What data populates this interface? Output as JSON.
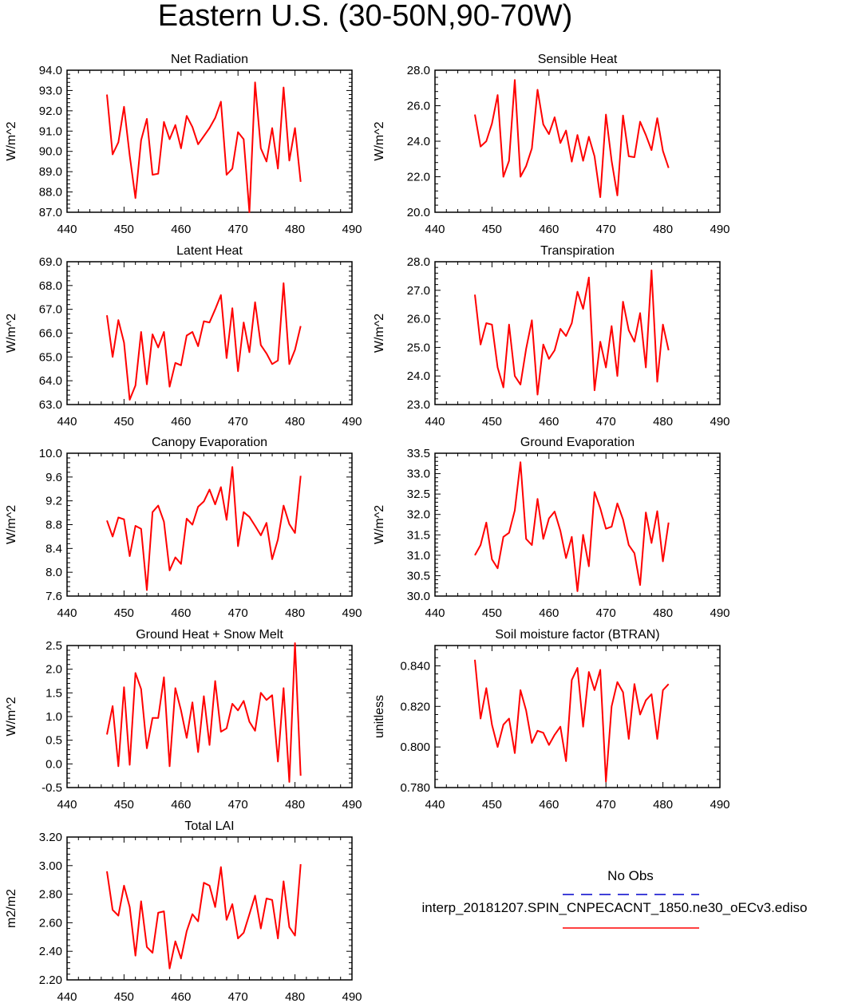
{
  "title": "Eastern U.S. (30-50N,90-70W)",
  "x": [
    447,
    448,
    449,
    450,
    451,
    452,
    453,
    454,
    455,
    456,
    457,
    458,
    459,
    460,
    461,
    462,
    463,
    464,
    465,
    466,
    467,
    468,
    469,
    470,
    471,
    472,
    473,
    474,
    475,
    476,
    477,
    478,
    479,
    480,
    481
  ],
  "line_color": "#ff0000",
  "obs_color": "#0000cc",
  "legend": {
    "obs_label": "No Obs",
    "model_label": "interp_20181207.SPIN_CNPECACNT_1850.ne30_oECv3.ediso"
  },
  "chart_data": [
    {
      "type": "line",
      "title": "Net Radiation",
      "ylabel": "W/m^2",
      "xlim": [
        440,
        490
      ],
      "xticks": [
        "440",
        "450",
        "460",
        "470",
        "480",
        "490"
      ],
      "ylim": [
        87.0,
        94.0
      ],
      "yticks": [
        "87.0",
        "88.0",
        "89.0",
        "90.0",
        "91.0",
        "92.0",
        "93.0",
        "94.0"
      ],
      "values": [
        92.8,
        89.85,
        90.45,
        92.2,
        89.8,
        87.7,
        90.55,
        91.6,
        88.85,
        88.9,
        91.45,
        90.6,
        91.3,
        90.15,
        91.75,
        91.2,
        90.35,
        90.75,
        91.15,
        91.65,
        92.45,
        88.85,
        89.15,
        90.95,
        90.6,
        87.0,
        93.4,
        90.15,
        89.5,
        91.15,
        89.15,
        93.15,
        89.55,
        91.15,
        88.5
      ]
    },
    {
      "type": "line",
      "title": "Sensible Heat",
      "ylabel": "W/m^2",
      "xlim": [
        440,
        490
      ],
      "xticks": [
        "440",
        "450",
        "460",
        "470",
        "480",
        "490"
      ],
      "ylim": [
        20.0,
        28.0
      ],
      "yticks": [
        "20.0",
        "22.0",
        "24.0",
        "26.0",
        "28.0"
      ],
      "values": [
        25.5,
        23.7,
        24.0,
        25.0,
        26.6,
        22.0,
        22.9,
        27.45,
        22.0,
        22.6,
        23.6,
        26.9,
        24.95,
        24.4,
        25.35,
        23.9,
        24.6,
        22.85,
        24.35,
        22.9,
        24.25,
        23.15,
        20.85,
        25.5,
        22.9,
        20.95,
        25.45,
        23.15,
        23.1,
        25.1,
        24.35,
        23.5,
        25.3,
        23.45,
        22.5
      ]
    },
    {
      "type": "line",
      "title": "Latent Heat",
      "ylabel": "W/m^2",
      "xlim": [
        440,
        490
      ],
      "xticks": [
        "440",
        "450",
        "460",
        "470",
        "480",
        "490"
      ],
      "ylim": [
        63.0,
        69.0
      ],
      "yticks": [
        "63.0",
        "64.0",
        "65.0",
        "66.0",
        "67.0",
        "68.0",
        "69.0"
      ],
      "values": [
        66.75,
        65.0,
        66.55,
        65.6,
        63.2,
        63.8,
        66.05,
        63.85,
        65.95,
        65.4,
        66.05,
        63.75,
        64.75,
        64.65,
        65.9,
        66.05,
        65.45,
        66.5,
        66.45,
        67.0,
        67.6,
        64.95,
        67.05,
        64.4,
        66.45,
        65.2,
        67.3,
        65.5,
        65.15,
        64.7,
        64.85,
        68.1,
        64.7,
        65.3,
        66.3
      ]
    },
    {
      "type": "line",
      "title": "Transpiration",
      "ylabel": "W/m^2",
      "xlim": [
        440,
        490
      ],
      "xticks": [
        "440",
        "450",
        "460",
        "470",
        "480",
        "490"
      ],
      "ylim": [
        23.0,
        28.0
      ],
      "yticks": [
        "23.0",
        "24.0",
        "25.0",
        "26.0",
        "27.0",
        "28.0"
      ],
      "values": [
        26.85,
        25.1,
        25.85,
        25.8,
        24.3,
        23.6,
        25.8,
        24.0,
        23.7,
        24.95,
        25.95,
        23.35,
        25.1,
        24.6,
        24.9,
        25.65,
        25.4,
        25.85,
        26.95,
        26.35,
        27.45,
        23.5,
        25.2,
        24.3,
        25.75,
        24.0,
        26.6,
        25.6,
        25.2,
        26.2,
        24.3,
        27.7,
        23.8,
        25.8,
        24.9
      ]
    },
    {
      "type": "line",
      "title": "Canopy Evaporation",
      "ylabel": "W/m^2",
      "xlim": [
        440,
        490
      ],
      "xticks": [
        "440",
        "450",
        "460",
        "470",
        "480",
        "490"
      ],
      "ylim": [
        7.6,
        10.0
      ],
      "yticks": [
        "7.6",
        "8.0",
        "8.4",
        "8.8",
        "9.2",
        "9.6",
        "10.0"
      ],
      "values": [
        8.87,
        8.6,
        8.92,
        8.89,
        8.27,
        8.78,
        8.73,
        7.7,
        9.01,
        9.12,
        8.85,
        8.03,
        8.25,
        8.14,
        8.9,
        8.8,
        9.1,
        9.19,
        9.39,
        9.14,
        9.43,
        8.88,
        9.77,
        8.44,
        9.01,
        8.93,
        8.78,
        8.62,
        8.83,
        8.22,
        8.55,
        9.12,
        8.81,
        8.66,
        9.62
      ]
    },
    {
      "type": "line",
      "title": "Ground Evaporation",
      "ylabel": "W/m^2",
      "xlim": [
        440,
        490
      ],
      "xticks": [
        "440",
        "450",
        "460",
        "470",
        "480",
        "490"
      ],
      "ylim": [
        30.0,
        33.5
      ],
      "yticks": [
        "30.0",
        "30.5",
        "31.0",
        "31.5",
        "32.0",
        "32.5",
        "33.0",
        "33.5"
      ],
      "values": [
        31.0,
        31.25,
        31.8,
        30.9,
        30.68,
        31.45,
        31.55,
        32.1,
        33.28,
        31.4,
        31.25,
        32.38,
        31.4,
        31.9,
        32.07,
        31.6,
        30.93,
        31.45,
        30.12,
        31.5,
        30.73,
        32.55,
        32.15,
        31.65,
        31.7,
        32.27,
        31.88,
        31.25,
        31.05,
        30.27,
        32.05,
        31.3,
        32.08,
        30.85,
        31.8
      ]
    },
    {
      "type": "line",
      "title": "Ground Heat + Snow Melt",
      "ylabel": "W/m^2",
      "xlim": [
        440,
        490
      ],
      "xticks": [
        "440",
        "450",
        "460",
        "470",
        "480",
        "490"
      ],
      "ylim": [
        -0.5,
        2.5
      ],
      "yticks": [
        "-0.5",
        "0.0",
        "0.5",
        "1.0",
        "1.5",
        "2.0",
        "2.5"
      ],
      "values": [
        0.62,
        1.22,
        -0.05,
        1.62,
        -0.02,
        1.92,
        1.58,
        0.33,
        0.97,
        0.97,
        1.83,
        -0.05,
        1.6,
        1.13,
        0.55,
        1.3,
        0.25,
        1.43,
        0.4,
        1.75,
        0.68,
        0.75,
        1.27,
        1.13,
        1.33,
        0.89,
        0.7,
        1.5,
        1.35,
        1.45,
        0.05,
        1.6,
        -0.38,
        2.55,
        -0.25
      ]
    },
    {
      "type": "line",
      "title": "Soil moisture factor (BTRAN)",
      "ylabel": "unitless",
      "xlim": [
        440,
        490
      ],
      "xticks": [
        "440",
        "450",
        "460",
        "470",
        "480",
        "490"
      ],
      "ylim": [
        0.78,
        0.85
      ],
      "yticks": [
        "0.780",
        "0.800",
        "0.820",
        "0.840"
      ],
      "values": [
        0.843,
        0.814,
        0.829,
        0.811,
        0.8,
        0.811,
        0.814,
        0.797,
        0.828,
        0.818,
        0.802,
        0.808,
        0.807,
        0.801,
        0.806,
        0.81,
        0.793,
        0.833,
        0.839,
        0.81,
        0.837,
        0.828,
        0.838,
        0.783,
        0.82,
        0.832,
        0.827,
        0.804,
        0.831,
        0.816,
        0.823,
        0.826,
        0.804,
        0.828,
        0.831
      ]
    },
    {
      "type": "line",
      "title": "Total LAI",
      "ylabel": "m2/m2",
      "xlim": [
        440,
        490
      ],
      "xticks": [
        "440",
        "450",
        "460",
        "470",
        "480",
        "490"
      ],
      "ylim": [
        2.2,
        3.2
      ],
      "yticks": [
        "2.20",
        "2.40",
        "2.60",
        "2.80",
        "3.00",
        "3.20"
      ],
      "values": [
        2.96,
        2.69,
        2.65,
        2.86,
        2.71,
        2.37,
        2.75,
        2.43,
        2.39,
        2.67,
        2.68,
        2.28,
        2.47,
        2.35,
        2.54,
        2.66,
        2.61,
        2.88,
        2.86,
        2.71,
        2.99,
        2.62,
        2.73,
        2.49,
        2.53,
        2.66,
        2.79,
        2.56,
        2.77,
        2.76,
        2.49,
        2.89,
        2.57,
        2.51,
        3.01
      ]
    }
  ]
}
